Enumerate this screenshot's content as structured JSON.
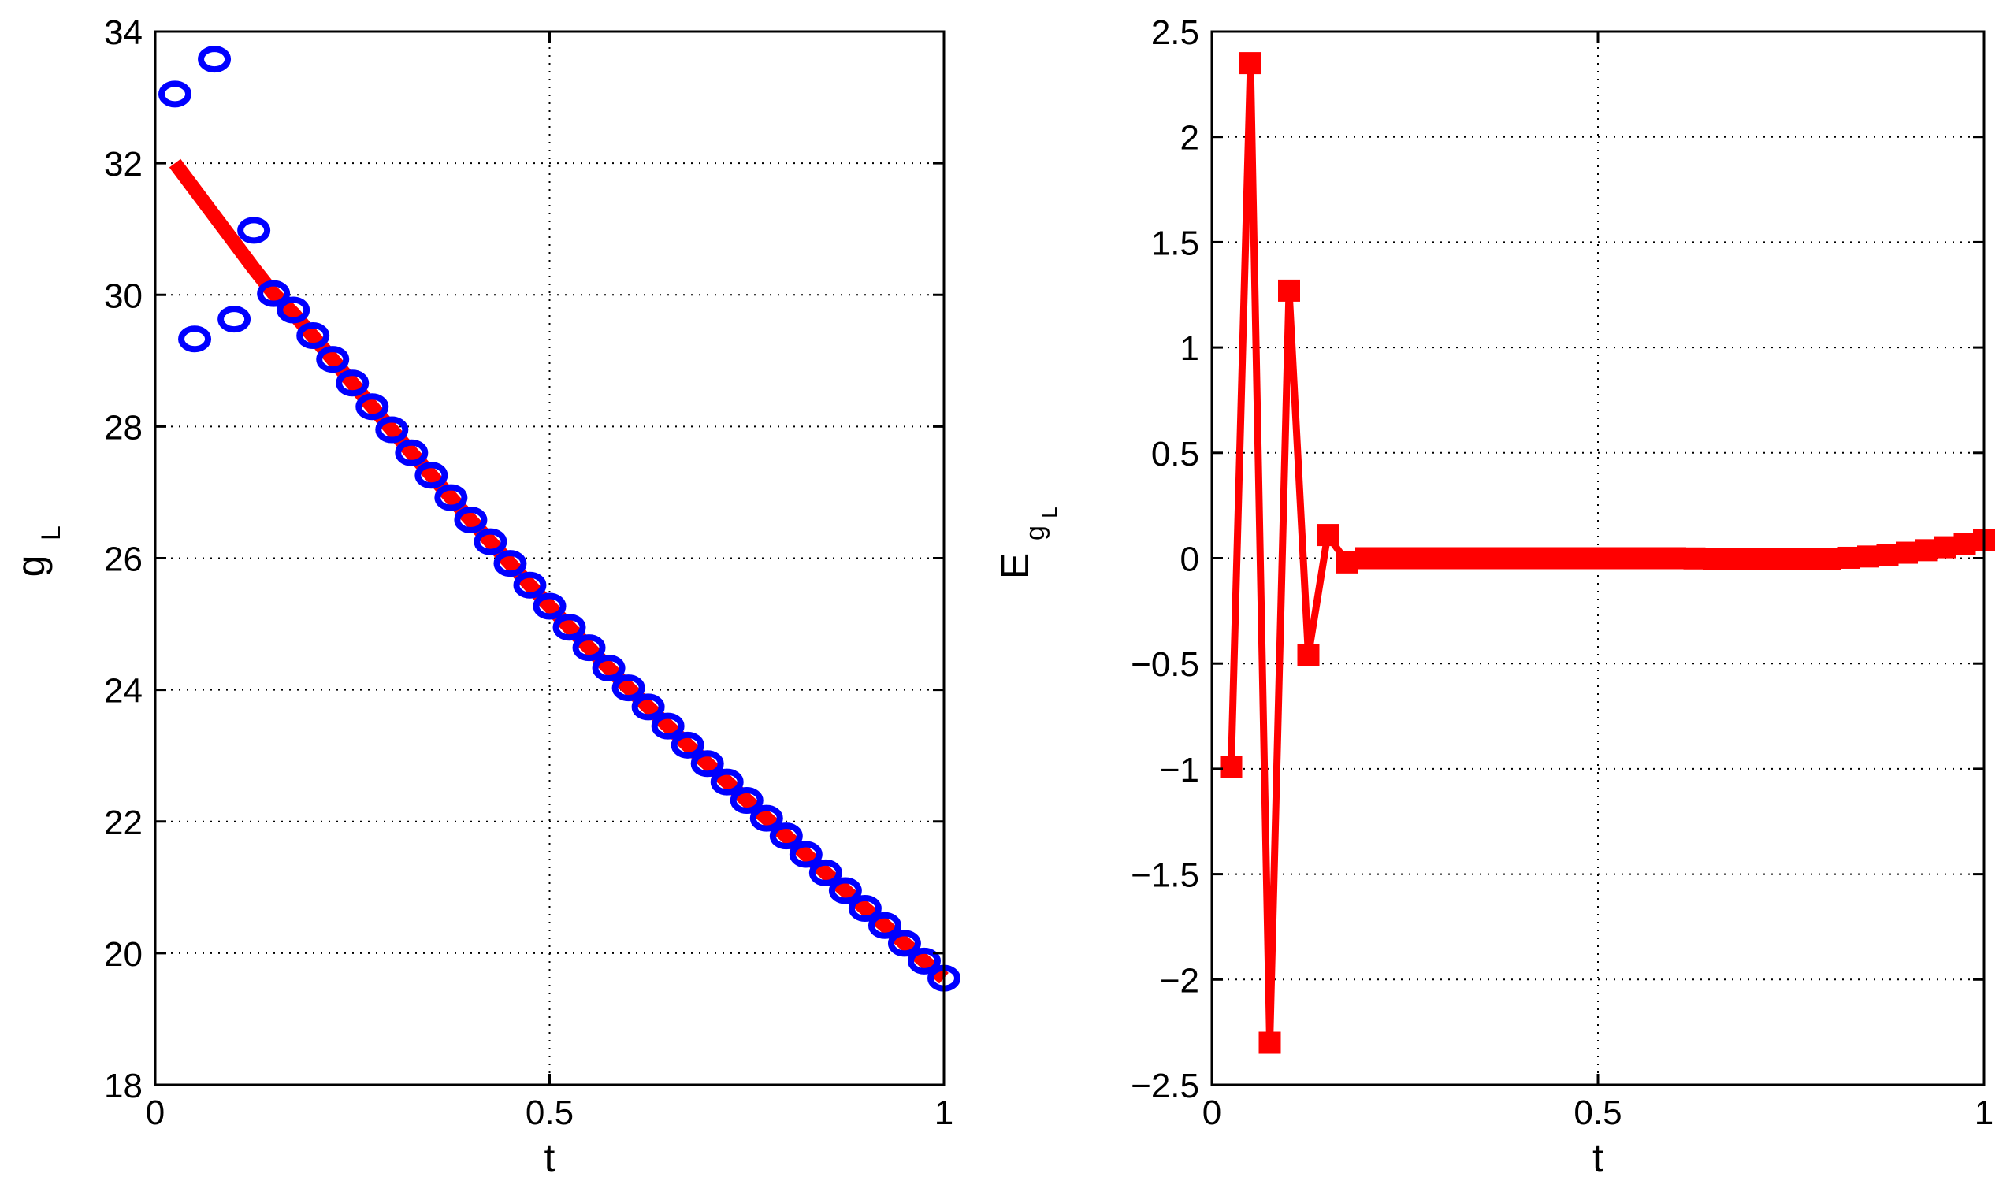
{
  "colors": {
    "line": "#ff0000",
    "marker_circle": "#0000ff",
    "axes": "#000000",
    "grid": "#000000"
  },
  "chart_data": [
    {
      "type": "line",
      "xlabel": "t",
      "ylabel": {
        "main": "g",
        "subscript": "L"
      },
      "xlim": [
        0,
        1
      ],
      "ylim": [
        18,
        34
      ],
      "grid": true,
      "x_ticks": [
        0,
        0.5,
        1
      ],
      "x_tick_labels": [
        "0",
        "0.5",
        "1"
      ],
      "y_ticks": [
        18,
        20,
        22,
        24,
        26,
        28,
        30,
        32,
        34
      ],
      "y_tick_labels": [
        "18",
        "20",
        "22",
        "24",
        "26",
        "28",
        "30",
        "32",
        "34"
      ],
      "series": [
        {
          "style": "solid-thick",
          "color": "#ff0000",
          "x": [
            0.025,
            0.05,
            0.075,
            0.1,
            0.125,
            0.15,
            0.175,
            0.2,
            0.225,
            0.25,
            0.275,
            0.3,
            0.325,
            0.35,
            0.375,
            0.4,
            0.425,
            0.45,
            0.475,
            0.5,
            0.525,
            0.55,
            0.575,
            0.6,
            0.625,
            0.65,
            0.675,
            0.7,
            0.725,
            0.75,
            0.775,
            0.8,
            0.825,
            0.85,
            0.875,
            0.9,
            0.925,
            0.95,
            0.975,
            1.0
          ],
          "y": [
            32.0,
            31.6,
            31.2,
            30.8,
            30.4,
            30.02,
            29.72,
            29.37,
            29.02,
            28.66,
            28.3,
            27.95,
            27.6,
            27.26,
            26.92,
            26.58,
            26.25,
            25.92,
            25.59,
            25.27,
            24.95,
            24.64,
            24.33,
            24.03,
            23.74,
            23.45,
            23.16,
            22.88,
            22.6,
            22.32,
            22.05,
            21.78,
            21.5,
            21.22,
            20.95,
            20.68,
            20.42,
            20.15,
            19.88,
            19.62
          ]
        },
        {
          "style": "circle-markers",
          "color": "#0000ff",
          "x": [
            0.025,
            0.05,
            0.075,
            0.1,
            0.125,
            0.15,
            0.175,
            0.2,
            0.225,
            0.25,
            0.275,
            0.3,
            0.325,
            0.35,
            0.375,
            0.4,
            0.425,
            0.45,
            0.475,
            0.5,
            0.525,
            0.55,
            0.575,
            0.6,
            0.625,
            0.65,
            0.675,
            0.7,
            0.725,
            0.75,
            0.775,
            0.8,
            0.825,
            0.85,
            0.875,
            0.9,
            0.925,
            0.95,
            0.975,
            1.0
          ],
          "y": [
            33.05,
            29.33,
            33.58,
            29.63,
            30.98,
            30.02,
            29.77,
            29.38,
            29.02,
            28.66,
            28.3,
            27.95,
            27.6,
            27.26,
            26.92,
            26.58,
            26.25,
            25.92,
            25.59,
            25.27,
            24.95,
            24.64,
            24.33,
            24.03,
            23.74,
            23.45,
            23.16,
            22.88,
            22.6,
            22.32,
            22.05,
            21.78,
            21.5,
            21.22,
            20.95,
            20.68,
            20.42,
            20.15,
            19.88,
            19.62
          ]
        }
      ]
    },
    {
      "type": "line",
      "xlabel": "t",
      "ylabel": {
        "main": "E",
        "subscript": "g",
        "subsubscript": "L"
      },
      "xlim": [
        0,
        1
      ],
      "ylim": [
        -2.5,
        2.5
      ],
      "grid": true,
      "x_ticks": [
        0,
        0.5,
        1
      ],
      "x_tick_labels": [
        "0",
        "0.5",
        "1"
      ],
      "y_ticks": [
        -2.5,
        -2,
        -1.5,
        -1,
        -0.5,
        0,
        0.5,
        1,
        1.5,
        2,
        2.5
      ],
      "y_tick_labels": [
        "−2.5",
        "−2",
        "−1.5",
        "−1",
        "−0.5",
        "0",
        "0.5",
        "1",
        "1.5",
        "2",
        "2.5"
      ],
      "series": [
        {
          "style": "square-markers-line",
          "color": "#ff0000",
          "x": [
            0.025,
            0.05,
            0.075,
            0.1,
            0.125,
            0.15,
            0.175,
            0.2,
            0.225,
            0.25,
            0.275,
            0.3,
            0.325,
            0.35,
            0.375,
            0.4,
            0.425,
            0.45,
            0.475,
            0.5,
            0.525,
            0.55,
            0.575,
            0.6,
            0.625,
            0.65,
            0.675,
            0.7,
            0.725,
            0.75,
            0.775,
            0.8,
            0.825,
            0.85,
            0.875,
            0.9,
            0.925,
            0.95,
            0.975,
            1.0
          ],
          "y": [
            -0.99,
            2.35,
            -2.3,
            1.27,
            -0.46,
            0.11,
            -0.02,
            0.0,
            0.0,
            0.0,
            0.0,
            0.0,
            0.0,
            0.0,
            0.0,
            0.0,
            0.0,
            0.0,
            0.0,
            0.0,
            0.0,
            0.0,
            0.0,
            0.0,
            -0.001,
            -0.002,
            -0.003,
            -0.004,
            -0.005,
            -0.005,
            -0.004,
            -0.002,
            0.002,
            0.008,
            0.016,
            0.026,
            0.038,
            0.052,
            0.067,
            0.085
          ]
        }
      ]
    }
  ]
}
